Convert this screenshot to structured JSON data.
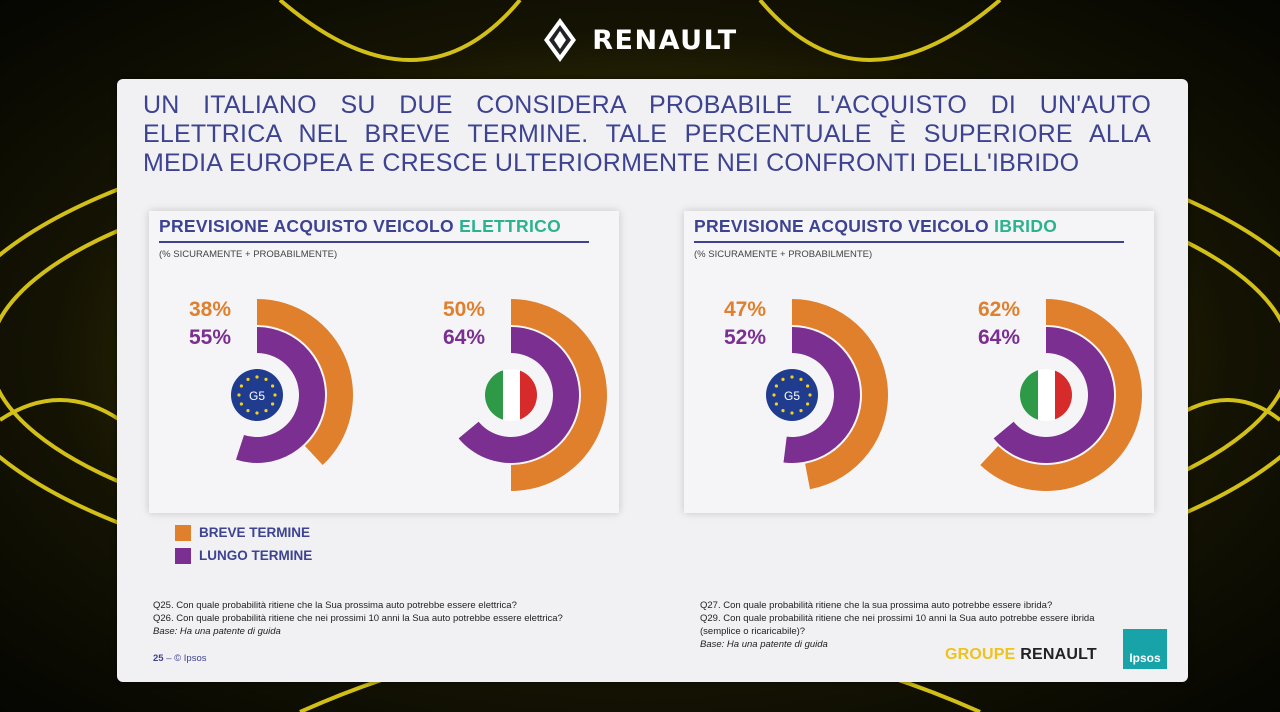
{
  "brand": {
    "name": "RENAULT"
  },
  "slide": {
    "headline": "UN ITALIANO SU DUE CONSIDERA PROBABILE L'ACQUISTO DI UN'AUTO ELETTRICA NEL BREVE TERMINE. TALE PERCENTUALE È SUPERIORE ALLA MEDIA EUROPEA E CRESCE ULTERIORMENTE NEI CONFRONTI DELL'IBRIDO",
    "page_number": "25",
    "copyright": "© Ipsos",
    "footer_brand_1": "GROUPE",
    "footer_brand_2": "RENAULT",
    "ipsos_logo": "Ipsos"
  },
  "panels": [
    {
      "title_prefix": "PREVISIONE ACQUISTO VEICOLO ",
      "title_highlight": "ELETTRICO",
      "subtitle": "(% SICURAMENTE + PROBABILMENTE)",
      "g5_label": "G5"
    },
    {
      "title_prefix": "PREVISIONE ACQUISTO VEICOLO ",
      "title_highlight": "IBRIDO",
      "subtitle": "(% SICURAMENTE + PROBABILMENTE)",
      "g5_label": "G5"
    }
  ],
  "legend": {
    "short_term": "BREVE TERMINE",
    "long_term": "LUNGO TERMINE"
  },
  "notes_left": {
    "q25": "Q25. Con quale probabilità ritiene che la Sua prossima auto potrebbe essere elettrica?",
    "q26": "Q26. Con quale probabilità ritiene che nei prossimi 10 anni la Sua auto potrebbe essere elettrica?",
    "base": "Base: Ha una patente di guida"
  },
  "notes_right": {
    "q27": "Q27. Con quale probabilità ritiene che la sua prossima auto potrebbe essere ibrida?",
    "q29": "Q29. Con quale probabilità ritiene che nei prossimi 10 anni la Sua auto potrebbe essere ibrida",
    "q29b": "(semplice o ricaricabile)?",
    "base": "Base: Ha una patente di guida"
  },
  "colors": {
    "short_term": "#e07f2c",
    "long_term": "#7a2f91",
    "headline": "#3d4391",
    "highlight": "#2bb38f",
    "eu_blue": "#1f3c8f",
    "eu_star": "#f4d01f",
    "italy_green": "#2e9a48",
    "italy_red": "#d72a2a"
  },
  "chart_data": [
    {
      "type": "radial-bar",
      "title": "PREVISIONE ACQUISTO VEICOLO ELETTRICO",
      "subtitle": "(% SICURAMENTE + PROBABILMENTE)",
      "categories": [
        "G5",
        "Italia"
      ],
      "series": [
        {
          "name": "BREVE TERMINE",
          "values": [
            38,
            50
          ]
        },
        {
          "name": "LUNGO TERMINE",
          "values": [
            55,
            64
          ]
        }
      ],
      "unit": "%"
    },
    {
      "type": "radial-bar",
      "title": "PREVISIONE ACQUISTO VEICOLO IBRIDO",
      "subtitle": "(% SICURAMENTE + PROBABILMENTE)",
      "categories": [
        "G5",
        "Italia"
      ],
      "series": [
        {
          "name": "BREVE TERMINE",
          "values": [
            47,
            62
          ]
        },
        {
          "name": "LUNGO TERMINE",
          "values": [
            52,
            64
          ]
        }
      ],
      "unit": "%"
    }
  ]
}
